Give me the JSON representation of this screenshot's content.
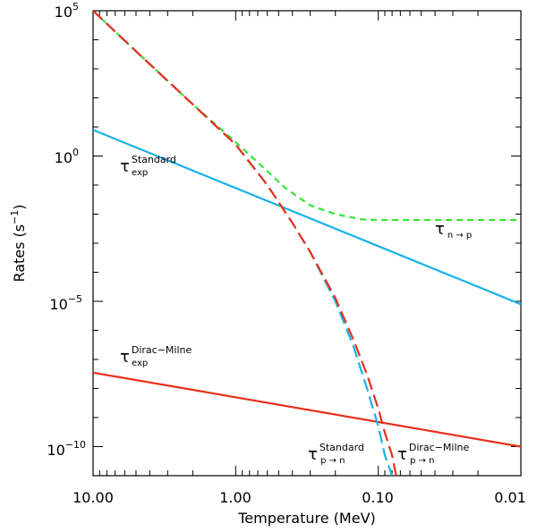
{
  "chart_data": {
    "type": "line",
    "xlabel": "Temperature (MeV)",
    "ylabel": "Rates",
    "ylabel_unit": "(s",
    "ylabel_unit_exp": "−1",
    "ylabel_unit_close": ")",
    "x_scale": "log",
    "y_scale": "log",
    "xlim": [
      10,
      0.01
    ],
    "ylim": [
      1e-11,
      100000.0
    ],
    "x_ticks": [
      {
        "value": 10,
        "label": "10.00"
      },
      {
        "value": 1,
        "label": "1.00"
      },
      {
        "value": 0.1,
        "label": "0.10"
      },
      {
        "value": 0.01,
        "label": "0.01"
      }
    ],
    "y_ticks": [
      {
        "value": 100000.0,
        "base": "10",
        "exp": "5"
      },
      {
        "value": 1,
        "base": "10",
        "exp": "0"
      },
      {
        "value": 1e-05,
        "base": "10",
        "exp": "−5"
      },
      {
        "value": 1e-10,
        "base": "10",
        "exp": "−10"
      }
    ],
    "series": [
      {
        "id": "tau-exp-standard",
        "name": "τ exp Standard",
        "color": "#1ab3e6",
        "dash": "solid",
        "x": [
          10,
          1,
          0.1,
          0.01
        ],
        "y": [
          7.9,
          0.079,
          0.00079,
          7.9e-06
        ]
      },
      {
        "id": "tau-exp-dirac-milne",
        "name": "τ exp Dirac-Milne",
        "color": "#e8301c",
        "dash": "solid",
        "x": [
          10,
          0.01
        ],
        "y": [
          3.5e-08,
          1e-10
        ]
      },
      {
        "id": "tau-n-to-p",
        "name": "τ n → p",
        "color": "#33e633",
        "dash": "dashed",
        "x": [
          10,
          5,
          2,
          1,
          0.6,
          0.45,
          0.3,
          0.2,
          0.13,
          0.1,
          0.05,
          0.01
        ],
        "y": [
          100000,
          4000,
          60,
          3,
          0.3,
          0.08,
          0.02,
          0.01,
          0.0066,
          0.0063,
          0.0063,
          0.0063
        ]
      },
      {
        "id": "tau-p-to-n-standard",
        "name": "τ p → n Standard",
        "color": "#1ab3e6",
        "dash": "dashed",
        "x": [
          10,
          5,
          2,
          1,
          0.6,
          0.4,
          0.3,
          0.2,
          0.15,
          0.12,
          0.1,
          0.09,
          0.08
        ],
        "y": [
          100000,
          4000,
          60,
          2.5,
          0.1,
          0.005,
          0.0005,
          1e-05,
          3e-07,
          1e-08,
          5e-10,
          5e-11,
          1e-11
        ]
      },
      {
        "id": "tau-p-to-n-dirac-milne",
        "name": "τ p → n Dirac-Milne",
        "color": "#e8301c",
        "dash": "dashed",
        "x": [
          10,
          5,
          2,
          1,
          0.6,
          0.4,
          0.3,
          0.2,
          0.15,
          0.12,
          0.1,
          0.09,
          0.08,
          0.075
        ],
        "y": [
          100000,
          4000,
          60,
          2.5,
          0.1,
          0.005,
          0.0005,
          1.3e-05,
          5e-07,
          3e-08,
          2e-09,
          3e-10,
          5e-11,
          1e-11
        ]
      }
    ],
    "annotations": [
      {
        "id": "standard-exp",
        "main": "τ",
        "sup": "Standard",
        "sub": "exp"
      },
      {
        "id": "dirac-milne-exp",
        "main": "τ",
        "sup": "Dirac−Milne",
        "sub": "exp"
      },
      {
        "id": "n-to-p",
        "main": "τ",
        "sub": "n → p"
      },
      {
        "id": "p-to-n-standard",
        "main": "τ",
        "sup": "Standard",
        "sub": "p → n"
      },
      {
        "id": "p-to-n-dirac-milne",
        "main": "τ",
        "sup": "Dirac−Milne",
        "sub": "p → n"
      }
    ]
  }
}
